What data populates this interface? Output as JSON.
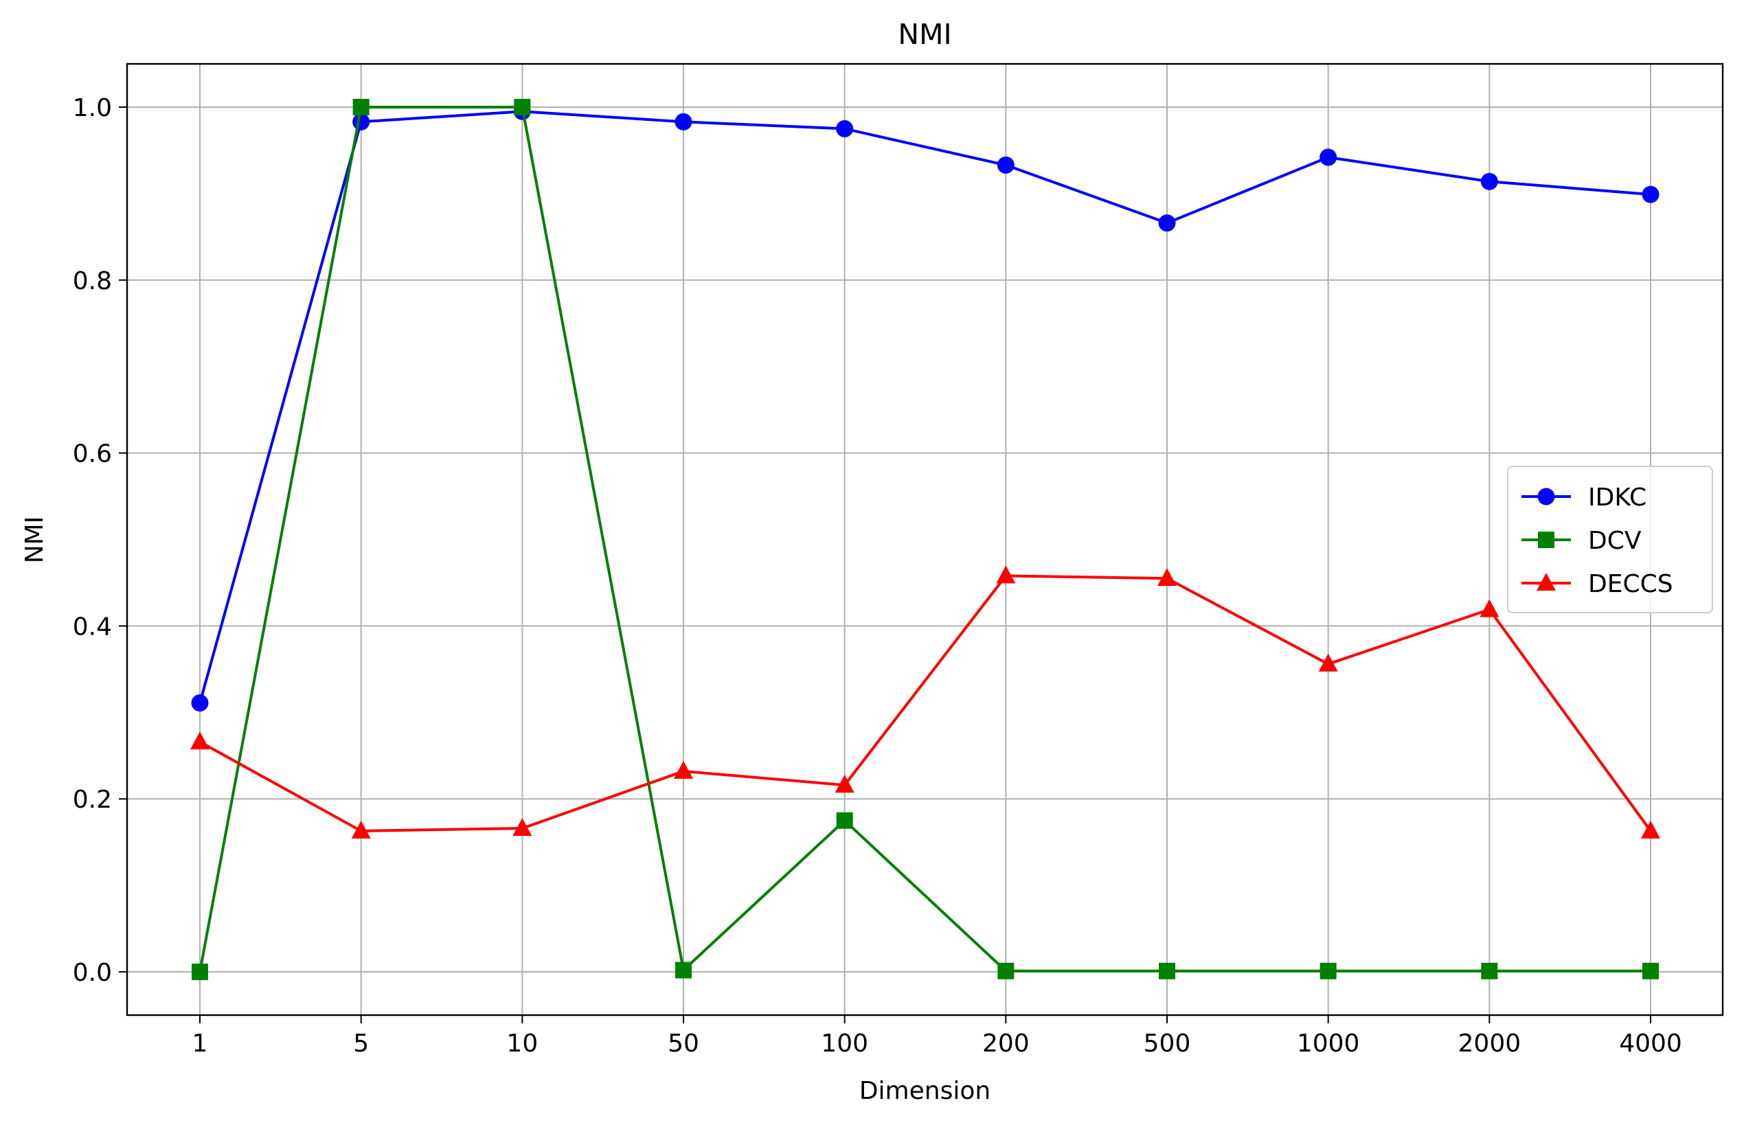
{
  "chart_data": {
    "type": "line",
    "title": "NMI",
    "xlabel": "Dimension",
    "ylabel": "NMI",
    "categories": [
      "1",
      "5",
      "10",
      "50",
      "100",
      "200",
      "500",
      "1000",
      "2000",
      "4000"
    ],
    "ylim": [
      -0.05,
      1.05
    ],
    "yticks": [
      "0.0",
      "0.2",
      "0.4",
      "0.6",
      "0.8",
      "1.0"
    ],
    "grid": true,
    "legend_position": "center-right",
    "series": [
      {
        "name": "IDKC",
        "color": "#0000ff",
        "marker": "circle",
        "values": [
          0.311,
          0.983,
          0.995,
          0.983,
          0.975,
          0.933,
          0.866,
          0.942,
          0.914,
          0.899
        ]
      },
      {
        "name": "DCV",
        "color": "#008000",
        "marker": "square",
        "values": [
          0.0,
          1.0,
          1.0,
          0.002,
          0.175,
          0.001,
          0.001,
          0.001,
          0.001,
          0.001
        ]
      },
      {
        "name": "DECCS",
        "color": "#ff0000",
        "marker": "triangle",
        "values": [
          0.266,
          0.163,
          0.166,
          0.232,
          0.216,
          0.458,
          0.455,
          0.356,
          0.419,
          0.163
        ]
      }
    ]
  }
}
